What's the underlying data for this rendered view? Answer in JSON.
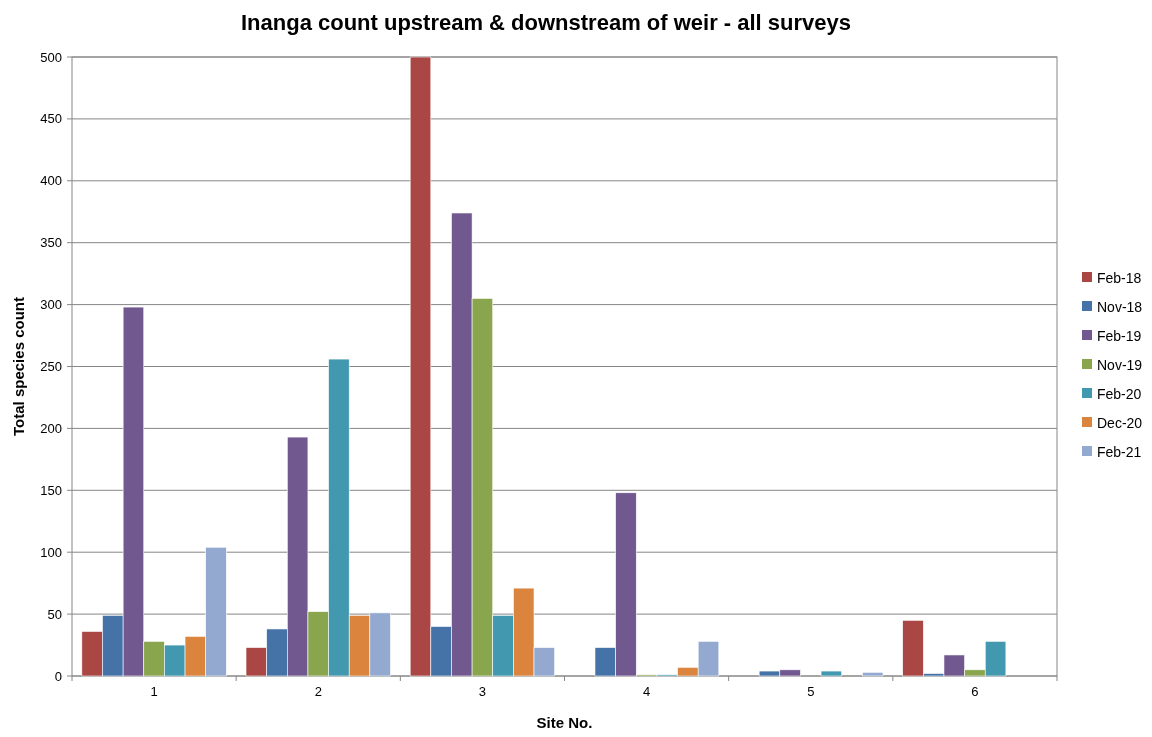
{
  "chart_data": {
    "type": "bar",
    "title": "Inanga count upstream & downstream of weir - all surveys",
    "xlabel": "Site No.",
    "ylabel": "Total species count",
    "categories": [
      "1",
      "2",
      "3",
      "4",
      "5",
      "6"
    ],
    "series": [
      {
        "name": "Feb-18",
        "color": "#aa4643",
        "values": [
          36,
          23,
          500,
          0,
          0,
          45
        ]
      },
      {
        "name": "Nov-18",
        "color": "#4572a7",
        "values": [
          49,
          38,
          40,
          23,
          4,
          2
        ]
      },
      {
        "name": "Feb-19",
        "color": "#71588f",
        "values": [
          298,
          193,
          374,
          148,
          5,
          17
        ]
      },
      {
        "name": "Nov-19",
        "color": "#89a54e",
        "values": [
          28,
          52,
          305,
          1,
          0,
          5
        ]
      },
      {
        "name": "Feb-20",
        "color": "#4198af",
        "values": [
          25,
          256,
          49,
          1,
          4,
          28
        ]
      },
      {
        "name": "Dec-20",
        "color": "#db843d",
        "values": [
          32,
          49,
          71,
          7,
          0,
          0
        ]
      },
      {
        "name": "Feb-21",
        "color": "#93a9cf",
        "values": [
          104,
          51,
          23,
          28,
          3,
          0
        ]
      }
    ],
    "ylim": [
      0,
      500
    ],
    "yticks": [
      0,
      50,
      100,
      150,
      200,
      250,
      300,
      350,
      400,
      450,
      500
    ],
    "grid": "y",
    "legend": "right"
  }
}
